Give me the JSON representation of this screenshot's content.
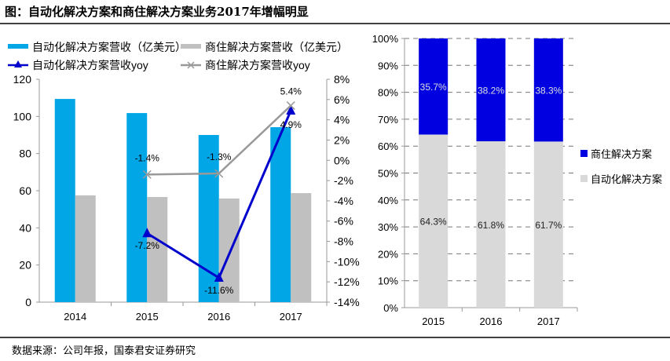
{
  "title": "图：自动化解决方案和商住解决方案业务2017年增幅明显",
  "source": "数据来源：公司年报，国泰君安证券研究",
  "colors": {
    "automation_bar": "#00a6e6",
    "residential_bar": "#c0c0c0",
    "automation_line": "#0000cc",
    "residential_line": "#999999",
    "stack_top": "#0000e0",
    "stack_bottom": "#d9d9d9"
  },
  "chart_data": [
    {
      "type": "bar+line",
      "categories": [
        "2014",
        "2015",
        "2016",
        "2017"
      ],
      "ylim": [
        0,
        120
      ],
      "yticks": [
        "0",
        "20",
        "40",
        "60",
        "80",
        "100",
        "120"
      ],
      "y2lim": [
        -14,
        8
      ],
      "y2ticks": [
        "-14%",
        "-12%",
        "-10%",
        "-8%",
        "-6%",
        "-4%",
        "-2%",
        "0%",
        "2%",
        "4%",
        "6%",
        "8%"
      ],
      "legend_position": "top",
      "bar_series": [
        {
          "name": "自动化解决方案营收（亿美元）",
          "values": [
            109.4,
            101.8,
            90.0,
            94.2
          ]
        },
        {
          "name": "商住解决方案营收（亿美元）",
          "values": [
            57.5,
            56.6,
            55.8,
            58.7
          ]
        }
      ],
      "line_series": [
        {
          "name": "自动化解决方案营收yoy",
          "marker": "triangle",
          "values": [
            null,
            -7.2,
            -11.6,
            4.9
          ],
          "labels": [
            "",
            "-7.2%",
            "-11.6%",
            "4.9%"
          ]
        },
        {
          "name": "商住解决方案营收yoy",
          "marker": "x",
          "values": [
            null,
            -1.4,
            -1.3,
            5.4
          ],
          "labels": [
            "",
            "-1.4%",
            "-1.3%",
            "5.4%"
          ]
        }
      ]
    },
    {
      "type": "stacked_bar",
      "categories": [
        "2015",
        "2016",
        "2017"
      ],
      "ylim": [
        0,
        100
      ],
      "yticks": [
        "0%",
        "10%",
        "20%",
        "30%",
        "40%",
        "50%",
        "60%",
        "70%",
        "80%",
        "90%",
        "100%"
      ],
      "grid": "dashed horizontal",
      "legend_position": "right",
      "series": [
        {
          "name": "自动化解决方案",
          "values": [
            64.3,
            61.8,
            61.7
          ],
          "labels": [
            "64.3%",
            "61.8%",
            "61.7%"
          ]
        },
        {
          "name": "商住解决方案",
          "values": [
            35.7,
            38.2,
            38.3
          ],
          "labels": [
            "35.7%",
            "38.2%",
            "38.3%"
          ]
        }
      ]
    }
  ]
}
